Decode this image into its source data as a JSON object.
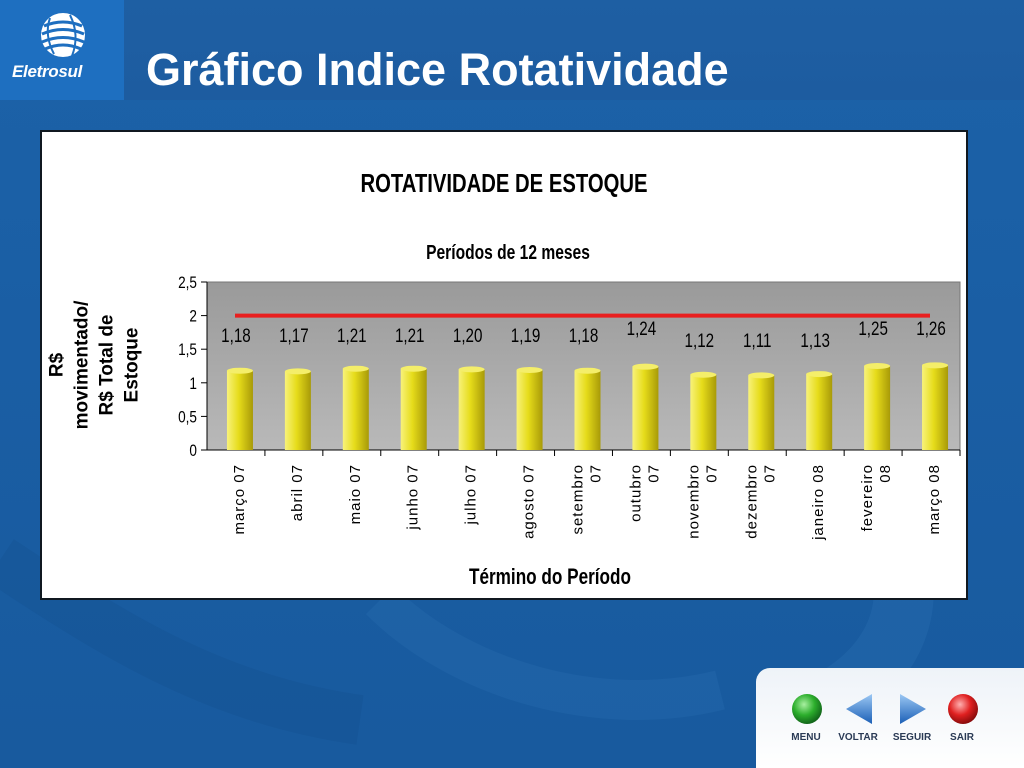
{
  "header": {
    "logo_text": "Eletrosul",
    "title": "Gráfico Indice Rotatividade"
  },
  "chart_data": {
    "type": "bar",
    "title": "ROTATIVIDADE DE ESTOQUE",
    "subtitle": "Períodos de 12 meses",
    "xlabel": "Término do Período",
    "ylabel_lines": [
      "R$",
      "movimentado/",
      "R$ Total de",
      "Estoque"
    ],
    "categories": [
      [
        "março 07"
      ],
      [
        "abril 07"
      ],
      [
        "maio 07"
      ],
      [
        "junho 07"
      ],
      [
        "julho 07"
      ],
      [
        "agosto 07"
      ],
      [
        "setembro",
        "07"
      ],
      [
        "outubro",
        "07"
      ],
      [
        "novembro",
        "07"
      ],
      [
        "dezembro",
        "07"
      ],
      [
        "janeiro 08"
      ],
      [
        "fevereiro",
        "08"
      ],
      [
        "março 08"
      ]
    ],
    "values": [
      1.18,
      1.17,
      1.21,
      1.21,
      1.2,
      1.19,
      1.18,
      1.24,
      1.12,
      1.11,
      1.13,
      1.25,
      1.26
    ],
    "value_labels": [
      "1,18",
      "1,17",
      "1,21",
      "1,21",
      "1,20",
      "1,19",
      "1,18",
      "1,24",
      "1,12",
      "1,11",
      "1,13",
      "1,25",
      "1,26"
    ],
    "y_ticks": [
      "0",
      "0,5",
      "1",
      "1,5",
      "2",
      "2,5"
    ],
    "y_tick_values": [
      0,
      0.5,
      1,
      1.5,
      2,
      2.5
    ],
    "ylim": [
      0,
      2.5
    ],
    "reference_line": 2.0,
    "bar_color": "#e6dc1a",
    "reference_color": "#e81f1f",
    "plot_bg": "#b9b9b9",
    "legend": "none"
  },
  "nav": {
    "menu_label": "MENU",
    "voltar_label": "VOLTAR",
    "seguir_label": "SEGUIR",
    "sair_label": "SAIR"
  }
}
